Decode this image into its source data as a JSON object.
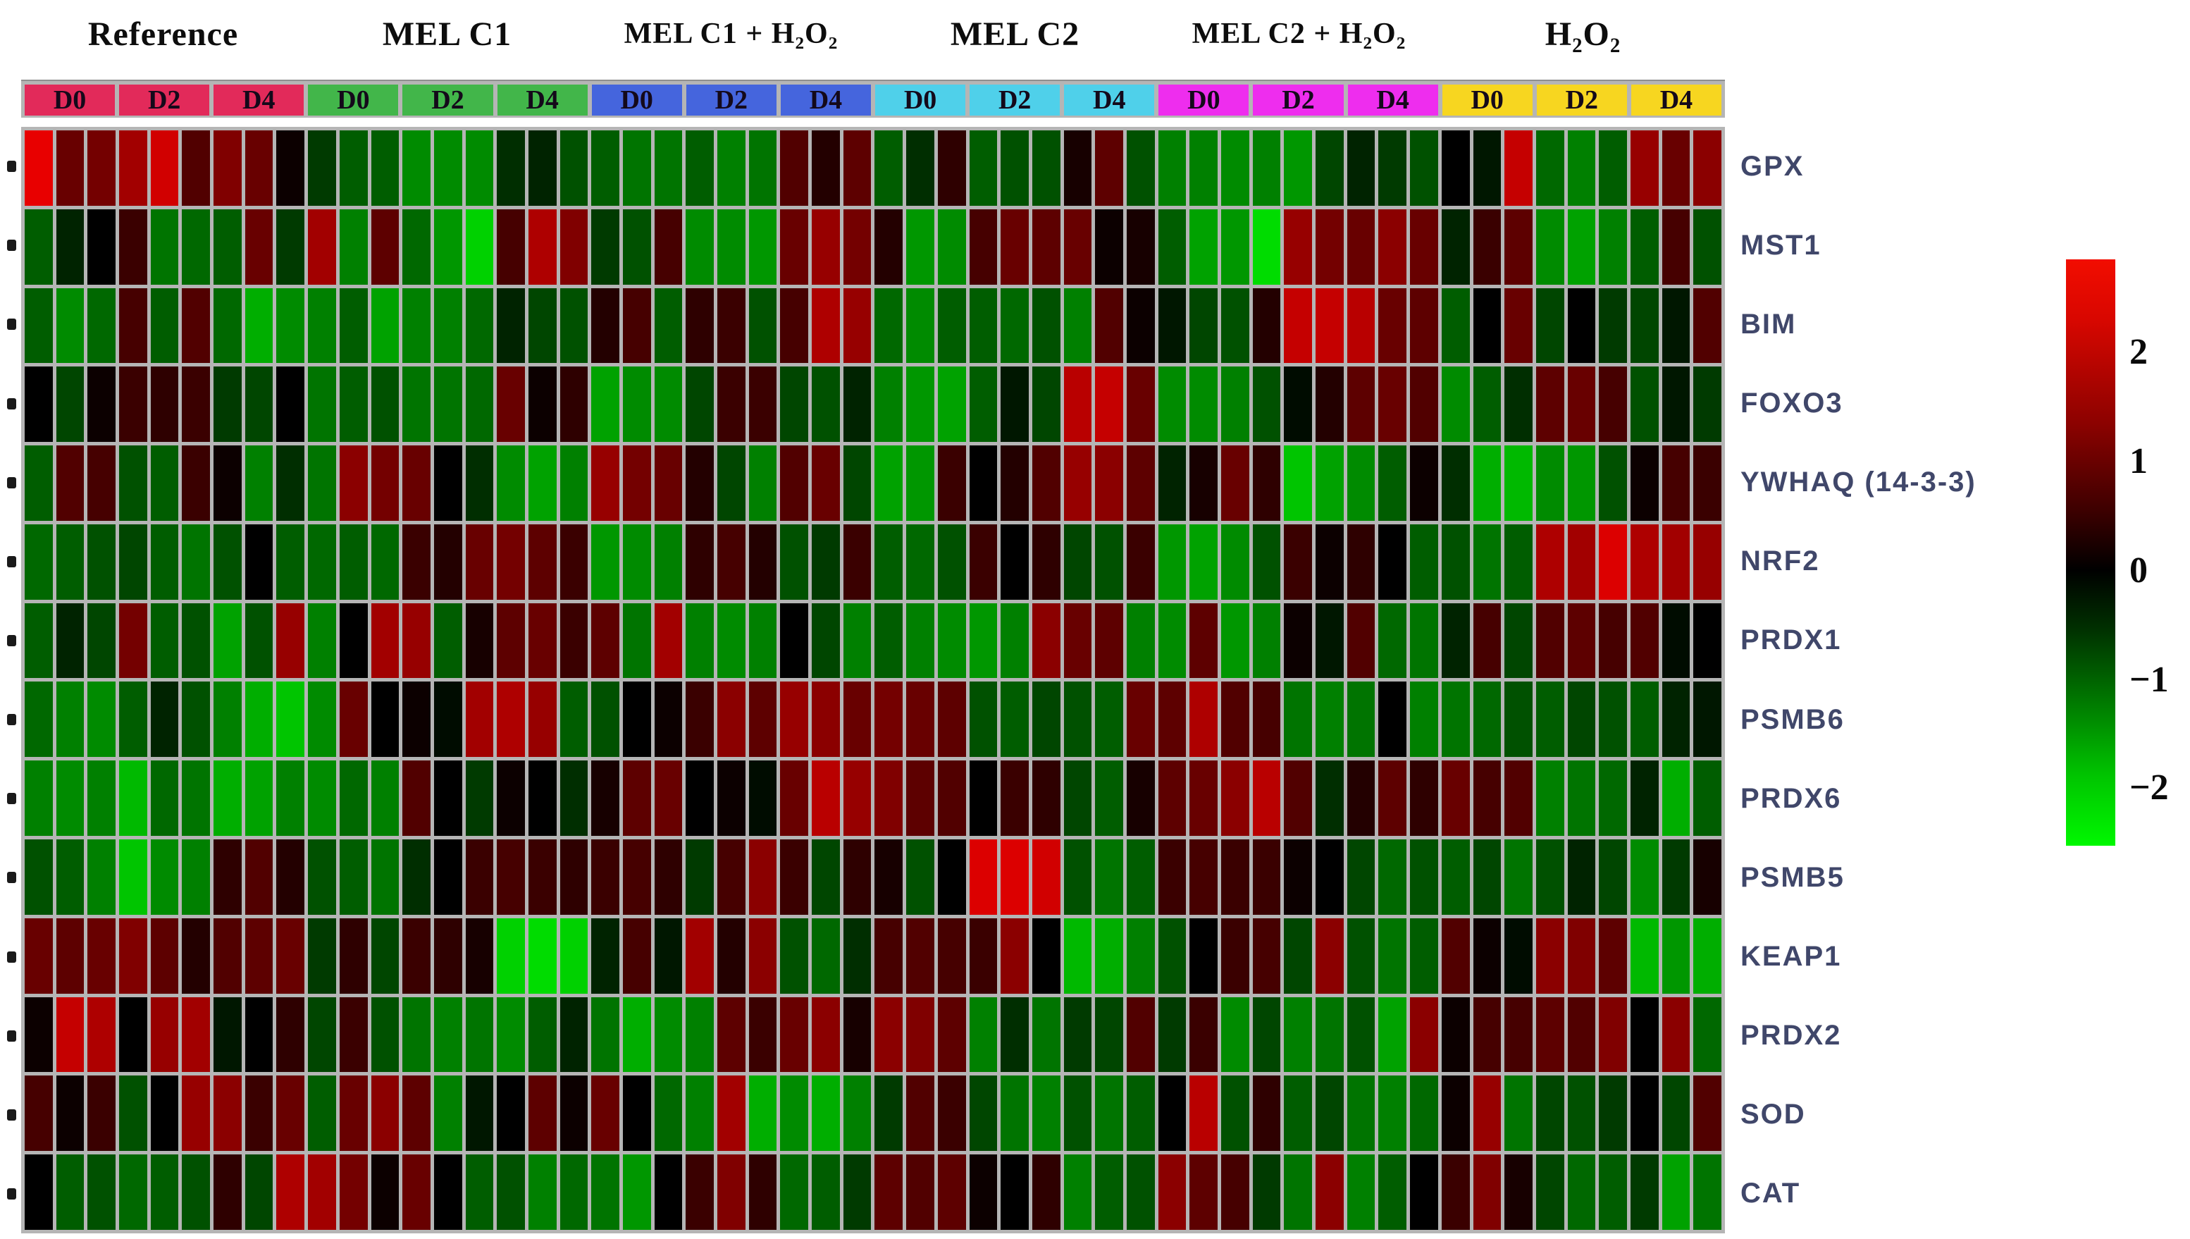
{
  "figure": {
    "background": "#ffffff",
    "grid_gap_color": "#b5b5b5",
    "row_label_color": "#40476a",
    "row_tick_color": "#1a1a1a"
  },
  "chart_data": {
    "type": "heatmap",
    "title": "",
    "legend_position": "right",
    "col_groups": [
      {
        "label": "Reference",
        "color": "#e22a5a",
        "days": [
          "D0",
          "D2",
          "D4"
        ]
      },
      {
        "label": "MEL C1",
        "color": "#42b64a",
        "days": [
          "D0",
          "D2",
          "D4"
        ]
      },
      {
        "label": "MEL C1 + H₂O₂",
        "color": "#4565dd",
        "days": [
          "D0",
          "D2",
          "D4"
        ]
      },
      {
        "label": "MEL C2",
        "color": "#4fd0ea",
        "days": [
          "D0",
          "D2",
          "D4"
        ]
      },
      {
        "label": "MEL C2 + H₂O₂",
        "color": "#ee2dee",
        "days": [
          "D0",
          "D2",
          "D4"
        ]
      },
      {
        "label": "H₂O₂",
        "color": "#f7d620",
        "days": [
          "D0",
          "D2",
          "D4"
        ]
      }
    ],
    "replicates_per_day": 3,
    "columns_total": 54,
    "rows": [
      "GPX",
      "MST1",
      "BIM",
      "FOXO3",
      "YWHAQ (14-3-3)",
      "NRF2",
      "PRDX1",
      "PSMB6",
      "PRDX6",
      "PSMB5",
      "KEAP1",
      "PRDX2",
      "SOD",
      "CAT"
    ],
    "value_scale": {
      "min": -2.5,
      "max": 2.5,
      "palette": "green-black-red"
    },
    "values": [
      [
        2.0,
        0.9,
        1.0,
        1.4,
        1.8,
        0.7,
        1.1,
        0.9,
        0.1,
        -0.5,
        -0.8,
        -0.8,
        -1.2,
        -1.2,
        -1.2,
        -0.4,
        -0.3,
        -0.7,
        -0.8,
        -1.0,
        -1.0,
        -0.8,
        -1.1,
        -1.0,
        0.7,
        0.3,
        0.8,
        -0.8,
        -0.4,
        0.4,
        -0.8,
        -0.7,
        -0.7,
        0.2,
        0.8,
        -0.7,
        -1.1,
        -1.1,
        -1.2,
        -1.1,
        -1.3,
        -0.6,
        -0.3,
        -0.5,
        -0.7,
        0.0,
        -0.2,
        1.7,
        -0.9,
        -1.1,
        -0.8,
        1.3,
        0.9,
        1.2
      ],
      [
        -0.8,
        -0.3,
        0.0,
        0.5,
        -1.0,
        -0.9,
        -0.8,
        0.9,
        -0.5,
        1.4,
        -1.1,
        0.8,
        -0.9,
        -1.3,
        -1.8,
        0.6,
        1.5,
        1.1,
        -0.5,
        -0.7,
        0.6,
        -1.2,
        -1.2,
        -1.3,
        0.9,
        1.3,
        1.0,
        0.3,
        -1.3,
        -1.2,
        0.6,
        0.9,
        0.8,
        0.9,
        0.1,
        0.2,
        -0.8,
        -1.4,
        -1.3,
        -1.9,
        1.3,
        1.0,
        0.9,
        1.2,
        0.9,
        -0.3,
        0.5,
        0.8,
        -1.2,
        -1.4,
        -1.1,
        -0.8,
        0.6,
        -0.7
      ],
      [
        -0.8,
        -1.2,
        -0.9,
        0.6,
        -0.8,
        0.7,
        -0.9,
        -1.5,
        -1.2,
        -1.1,
        -0.8,
        -1.4,
        -1.1,
        -1.1,
        -0.9,
        -0.3,
        -0.6,
        -0.7,
        0.3,
        0.6,
        -0.8,
        0.4,
        0.5,
        -0.7,
        0.6,
        1.5,
        1.3,
        -0.9,
        -1.2,
        -0.8,
        -0.8,
        -0.9,
        -0.7,
        -1.1,
        0.7,
        0.1,
        -0.2,
        -0.6,
        -0.7,
        0.3,
        1.7,
        1.7,
        1.6,
        0.9,
        0.8,
        -0.8,
        0.0,
        0.9,
        -0.6,
        0.0,
        -0.5,
        -0.6,
        -0.2,
        0.7
      ],
      [
        0.0,
        -0.6,
        0.1,
        0.5,
        0.4,
        0.5,
        -0.5,
        -0.6,
        0.0,
        -1.0,
        -0.8,
        -0.7,
        -1.0,
        -1.0,
        -0.9,
        0.9,
        0.1,
        0.4,
        -1.4,
        -1.2,
        -1.2,
        -0.6,
        0.5,
        0.5,
        -0.6,
        -0.7,
        -0.3,
        -1.1,
        -1.3,
        -1.4,
        -0.8,
        -0.2,
        -0.6,
        1.6,
        1.7,
        0.9,
        -1.2,
        -1.2,
        -1.1,
        -0.7,
        -0.1,
        0.3,
        0.8,
        0.9,
        0.7,
        -1.2,
        -0.8,
        -0.4,
        0.8,
        0.9,
        0.6,
        -0.7,
        -0.2,
        -0.5
      ],
      [
        -0.8,
        0.7,
        0.6,
        -0.7,
        -0.8,
        0.5,
        0.1,
        -1.1,
        -0.4,
        -1.0,
        1.2,
        1.0,
        0.9,
        0.0,
        -0.4,
        -1.2,
        -1.4,
        -1.1,
        1.3,
        1.0,
        0.9,
        0.3,
        -0.6,
        -1.1,
        0.7,
        0.9,
        -0.6,
        -1.4,
        -1.3,
        0.5,
        0.0,
        0.3,
        0.7,
        1.3,
        1.2,
        0.8,
        -0.3,
        0.2,
        0.9,
        0.4,
        -1.7,
        -1.4,
        -1.2,
        -0.8,
        0.1,
        -0.4,
        -1.5,
        -1.6,
        -1.2,
        -1.3,
        -0.7,
        0.1,
        0.6,
        0.5
      ],
      [
        -0.9,
        -0.8,
        -0.7,
        -0.6,
        -0.8,
        -1.0,
        -0.7,
        0.0,
        -0.8,
        -0.9,
        -0.8,
        -0.9,
        0.5,
        0.3,
        0.9,
        1.0,
        0.8,
        0.5,
        -1.3,
        -1.2,
        -1.1,
        0.4,
        0.6,
        0.3,
        -0.7,
        -0.5,
        0.5,
        -0.8,
        -0.9,
        -0.7,
        0.5,
        0.0,
        0.4,
        -0.6,
        -0.7,
        0.5,
        -1.3,
        -1.4,
        -1.2,
        -0.7,
        0.5,
        0.1,
        0.4,
        0.0,
        -0.8,
        -0.7,
        -1.0,
        -0.8,
        1.5,
        1.4,
        1.9,
        1.5,
        1.4,
        1.3
      ],
      [
        -0.8,
        -0.3,
        -0.6,
        1.0,
        -0.8,
        -0.7,
        -1.4,
        -0.7,
        1.3,
        -1.1,
        0.0,
        1.4,
        1.3,
        -0.8,
        0.2,
        0.8,
        0.9,
        0.5,
        0.8,
        -1.0,
        1.4,
        -1.1,
        -1.2,
        -1.1,
        0.0,
        -0.6,
        -1.1,
        -0.8,
        -1.1,
        -1.2,
        -1.3,
        -1.1,
        1.2,
        0.9,
        0.8,
        -1.1,
        -1.2,
        0.8,
        -1.3,
        -1.1,
        0.1,
        -0.2,
        0.7,
        -0.9,
        -1.0,
        -0.3,
        0.6,
        -0.6,
        0.7,
        0.8,
        0.6,
        0.7,
        -0.1,
        0.0
      ],
      [
        -0.9,
        -1.1,
        -1.2,
        -0.8,
        -0.3,
        -0.7,
        -1.1,
        -1.5,
        -1.7,
        -1.2,
        0.9,
        0.0,
        0.1,
        -0.1,
        1.4,
        1.5,
        1.3,
        -0.8,
        -0.7,
        0.0,
        0.1,
        0.5,
        1.2,
        0.8,
        1.3,
        1.2,
        0.9,
        1.0,
        0.9,
        0.8,
        -0.7,
        -0.8,
        -0.6,
        -0.7,
        -0.8,
        0.9,
        0.8,
        1.5,
        0.7,
        0.6,
        -1.0,
        -1.1,
        -1.0,
        0.0,
        -1.1,
        -1.0,
        -0.9,
        -0.7,
        -0.8,
        -0.6,
        -0.7,
        -0.8,
        -0.3,
        -0.2
      ],
      [
        -1.1,
        -1.2,
        -1.1,
        -1.6,
        -0.9,
        -1.0,
        -1.5,
        -1.4,
        -1.1,
        -1.2,
        -0.9,
        -1.1,
        0.7,
        0.0,
        -0.5,
        0.1,
        0.0,
        -0.4,
        0.2,
        0.8,
        0.9,
        0.0,
        0.1,
        -0.1,
        0.9,
        1.6,
        1.3,
        1.1,
        0.8,
        0.7,
        0.0,
        0.5,
        0.4,
        -0.6,
        -0.8,
        0.2,
        0.8,
        0.9,
        1.2,
        1.6,
        0.7,
        -0.4,
        0.3,
        0.8,
        0.4,
        0.9,
        0.6,
        0.7,
        -1.1,
        -1.0,
        -0.9,
        -0.3,
        -1.5,
        -0.8
      ],
      [
        -0.7,
        -0.8,
        -1.1,
        -1.7,
        -1.2,
        -1.1,
        0.4,
        0.7,
        0.3,
        -0.7,
        -0.8,
        -1.0,
        -0.4,
        0.0,
        0.5,
        0.6,
        0.5,
        0.4,
        0.5,
        0.6,
        0.4,
        -0.5,
        0.6,
        1.2,
        0.5,
        -0.6,
        0.4,
        0.2,
        -0.7,
        0.0,
        1.9,
        1.9,
        1.8,
        -0.7,
        -1.0,
        -0.8,
        0.5,
        0.6,
        0.5,
        0.5,
        0.1,
        0.0,
        -0.6,
        -0.9,
        -0.7,
        -0.8,
        -0.6,
        -1.0,
        -0.7,
        -0.3,
        -0.6,
        -1.2,
        -0.5,
        0.2
      ],
      [
        0.9,
        0.8,
        0.9,
        1.1,
        0.8,
        0.3,
        0.7,
        0.8,
        0.9,
        -0.5,
        0.4,
        -0.6,
        0.5,
        0.4,
        0.2,
        -1.8,
        -1.9,
        -1.8,
        -0.3,
        0.6,
        -0.2,
        1.4,
        0.3,
        1.2,
        -0.7,
        -0.9,
        -0.4,
        0.6,
        0.7,
        0.6,
        0.5,
        1.2,
        0.0,
        -1.6,
        -1.5,
        -1.1,
        -0.7,
        0.0,
        0.5,
        0.6,
        -0.6,
        1.2,
        -0.7,
        -1.0,
        -0.8,
        0.7,
        0.1,
        -0.1,
        1.2,
        1.1,
        0.8,
        -1.6,
        -1.3,
        -1.5
      ],
      [
        0.1,
        1.7,
        1.5,
        0.0,
        1.3,
        1.4,
        -0.2,
        0.0,
        0.4,
        -0.6,
        0.5,
        -0.7,
        -1.0,
        -1.1,
        -1.0,
        -1.2,
        -0.8,
        -0.3,
        -1.0,
        -1.5,
        -1.2,
        -1.1,
        0.8,
        0.5,
        0.9,
        1.2,
        0.2,
        1.2,
        1.1,
        0.8,
        -1.1,
        -0.4,
        -1.0,
        -0.5,
        -0.6,
        0.7,
        -0.5,
        0.5,
        -1.2,
        -0.6,
        -1.1,
        -1.0,
        -0.7,
        -1.4,
        1.2,
        0.1,
        0.6,
        0.6,
        0.8,
        0.7,
        1.1,
        0.0,
        1.2,
        -0.9
      ],
      [
        0.6,
        0.1,
        0.5,
        -0.7,
        0.0,
        1.3,
        1.2,
        0.5,
        0.9,
        -0.8,
        0.9,
        1.2,
        0.8,
        -1.1,
        -0.2,
        0.0,
        0.8,
        0.1,
        0.9,
        0.0,
        -0.9,
        -1.1,
        1.4,
        -1.5,
        -1.2,
        -1.5,
        -1.1,
        -0.5,
        0.7,
        0.5,
        -0.6,
        -1.0,
        -1.1,
        -0.7,
        -1.0,
        -0.8,
        0.0,
        1.6,
        -0.7,
        0.4,
        -0.8,
        -0.6,
        -1.0,
        -1.1,
        -0.9,
        0.1,
        1.3,
        -1.0,
        -0.6,
        -0.7,
        -0.5,
        0.0,
        -0.6,
        0.7
      ],
      [
        0.0,
        -0.8,
        -0.7,
        -0.9,
        -0.8,
        -0.7,
        0.4,
        -0.6,
        1.5,
        1.4,
        1.0,
        0.1,
        0.9,
        0.0,
        -0.8,
        -0.7,
        -1.1,
        -0.9,
        -1.0,
        -1.3,
        0.0,
        0.5,
        1.1,
        0.4,
        -0.9,
        -0.8,
        -0.5,
        0.8,
        0.7,
        0.8,
        0.1,
        0.0,
        0.4,
        -1.1,
        -0.8,
        -0.7,
        1.2,
        0.8,
        0.6,
        -0.5,
        -1.0,
        1.2,
        -1.1,
        -0.8,
        0.0,
        0.5,
        1.1,
        0.2,
        -0.6,
        -0.9,
        -0.8,
        -0.5,
        -1.4,
        -1.0
      ]
    ],
    "colorbar": {
      "ticks": [
        "2",
        "1",
        "0",
        "−1",
        "−2"
      ],
      "top_color": "#f20d00",
      "zero_color": "#000000",
      "bottom_color": "#00f800"
    }
  }
}
